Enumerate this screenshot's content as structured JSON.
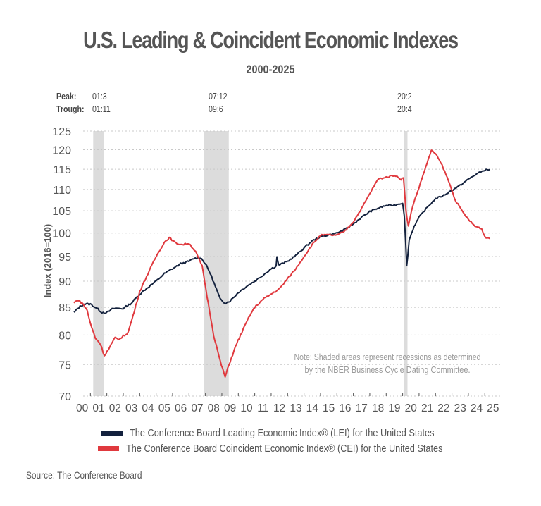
{
  "header": {
    "title": "U.S. Leading & Coincident Economic Indexes",
    "subtitle": "2000-2025"
  },
  "cycle_labels": {
    "peak_label": "Peak:",
    "trough_label": "Trough:",
    "recessions": [
      {
        "peak": "01:3",
        "trough": "01:11"
      },
      {
        "peak": "07:12",
        "trough": "09:6"
      },
      {
        "peak": "20:2",
        "trough": "20:4"
      }
    ]
  },
  "legend": {
    "lei": "The Conference Board Leading Economic Index® (LEI) for the United States",
    "cei": "The Conference Board Coincident Economic Index® (CEI) for the United States"
  },
  "note": {
    "line1": "Note: Shaded areas represent recessions as determined",
    "line2": "by the NBER Business Cycle Dating Committee."
  },
  "source": "Source: The Conference Board",
  "colors": {
    "lei": "#13213d",
    "cei": "#e0393e",
    "recession": "#dcdcdc",
    "grid": "#c8c8c8",
    "text": "#555555"
  },
  "chart_data": {
    "type": "line",
    "title": "U.S. Leading & Coincident Economic Indexes",
    "subtitle": "2000-2025",
    "xlabel": "",
    "ylabel": "Index (2016=100)",
    "yscale": "log",
    "ylim": [
      70,
      125
    ],
    "yticks": [
      70,
      75,
      80,
      85,
      90,
      95,
      100,
      105,
      110,
      115,
      120,
      125
    ],
    "xlim": [
      2000.0,
      2025.5
    ],
    "xtick_labels": [
      "00",
      "01",
      "02",
      "03",
      "04",
      "05",
      "06",
      "07",
      "08",
      "09",
      "10",
      "11",
      "12",
      "13",
      "14",
      "15",
      "16",
      "17",
      "18",
      "19",
      "20",
      "21",
      "22",
      "23",
      "24",
      "25"
    ],
    "grid": true,
    "legend_position": "bottom",
    "recessions": [
      {
        "start": 2001.17,
        "end": 2001.83
      },
      {
        "start": 2007.92,
        "end": 2009.42
      },
      {
        "start": 2020.08,
        "end": 2020.25
      }
    ],
    "series": [
      {
        "name": "LEI",
        "anchors": [
          [
            2000.0,
            84.0
          ],
          [
            2000.3,
            85.0
          ],
          [
            2000.6,
            85.6
          ],
          [
            2001.0,
            85.6
          ],
          [
            2001.3,
            85.0
          ],
          [
            2001.7,
            84.1
          ],
          [
            2002.0,
            84.0
          ],
          [
            2002.4,
            84.8
          ],
          [
            2003.0,
            84.8
          ],
          [
            2003.5,
            85.8
          ],
          [
            2004.0,
            87.5
          ],
          [
            2004.5,
            88.8
          ],
          [
            2005.0,
            90.0
          ],
          [
            2005.5,
            91.5
          ],
          [
            2006.0,
            92.5
          ],
          [
            2006.5,
            93.5
          ],
          [
            2007.0,
            94.0
          ],
          [
            2007.3,
            94.6
          ],
          [
            2007.7,
            94.8
          ],
          [
            2008.0,
            93.5
          ],
          [
            2008.3,
            91.5
          ],
          [
            2008.6,
            89.0
          ],
          [
            2008.9,
            86.5
          ],
          [
            2009.2,
            85.8
          ],
          [
            2009.5,
            86.2
          ],
          [
            2010.0,
            87.8
          ],
          [
            2010.5,
            89.0
          ],
          [
            2011.0,
            90.0
          ],
          [
            2011.5,
            91.2
          ],
          [
            2012.0,
            92.5
          ],
          [
            2012.3,
            93.0
          ],
          [
            2012.35,
            95.0
          ],
          [
            2012.45,
            93.2
          ],
          [
            2013.0,
            94.0
          ],
          [
            2013.5,
            95.2
          ],
          [
            2014.0,
            96.8
          ],
          [
            2014.5,
            98.3
          ],
          [
            2015.0,
            99.2
          ],
          [
            2015.5,
            99.6
          ],
          [
            2016.0,
            100.0
          ],
          [
            2016.5,
            100.8
          ],
          [
            2017.0,
            102.0
          ],
          [
            2017.5,
            103.5
          ],
          [
            2018.0,
            104.8
          ],
          [
            2018.5,
            105.6
          ],
          [
            2019.0,
            106.2
          ],
          [
            2019.5,
            106.3
          ],
          [
            2020.0,
            106.8
          ],
          [
            2020.1,
            104.0
          ],
          [
            2020.25,
            93.0
          ],
          [
            2020.4,
            98.5
          ],
          [
            2020.7,
            101.5
          ],
          [
            2021.0,
            103.5
          ],
          [
            2021.5,
            105.8
          ],
          [
            2022.0,
            107.8
          ],
          [
            2022.5,
            108.6
          ],
          [
            2023.0,
            109.8
          ],
          [
            2023.5,
            111.0
          ],
          [
            2024.0,
            112.5
          ],
          [
            2024.5,
            113.8
          ],
          [
            2025.0,
            114.8
          ],
          [
            2025.3,
            114.9
          ]
        ]
      },
      {
        "name": "CEI",
        "anchors": [
          [
            2000.0,
            85.8
          ],
          [
            2000.2,
            86.4
          ],
          [
            2000.5,
            85.8
          ],
          [
            2000.8,
            84.5
          ],
          [
            2001.0,
            82.0
          ],
          [
            2001.3,
            79.5
          ],
          [
            2001.6,
            78.5
          ],
          [
            2001.85,
            76.5
          ],
          [
            2002.1,
            77.5
          ],
          [
            2002.5,
            79.5
          ],
          [
            2002.8,
            79.3
          ],
          [
            2003.0,
            79.8
          ],
          [
            2003.3,
            80.5
          ],
          [
            2003.6,
            83.5
          ],
          [
            2004.0,
            88.0
          ],
          [
            2004.5,
            91.5
          ],
          [
            2005.0,
            95.0
          ],
          [
            2005.5,
            98.0
          ],
          [
            2005.8,
            99.0
          ],
          [
            2006.2,
            97.8
          ],
          [
            2006.6,
            97.5
          ],
          [
            2007.0,
            97.8
          ],
          [
            2007.4,
            96.0
          ],
          [
            2007.8,
            93.0
          ],
          [
            2008.1,
            87.0
          ],
          [
            2008.5,
            80.0
          ],
          [
            2008.9,
            75.5
          ],
          [
            2009.2,
            73.0
          ],
          [
            2009.5,
            75.5
          ],
          [
            2009.9,
            78.5
          ],
          [
            2010.3,
            81.0
          ],
          [
            2010.7,
            83.5
          ],
          [
            2011.0,
            85.0
          ],
          [
            2011.5,
            86.5
          ],
          [
            2012.0,
            87.5
          ],
          [
            2012.5,
            88.5
          ],
          [
            2013.0,
            90.5
          ],
          [
            2013.5,
            92.5
          ],
          [
            2014.0,
            95.0
          ],
          [
            2014.5,
            97.5
          ],
          [
            2015.0,
            99.5
          ],
          [
            2015.5,
            99.6
          ],
          [
            2016.0,
            99.5
          ],
          [
            2016.5,
            100.5
          ],
          [
            2017.0,
            102.5
          ],
          [
            2017.5,
            105.5
          ],
          [
            2018.0,
            109.0
          ],
          [
            2018.5,
            112.5
          ],
          [
            2019.0,
            113.0
          ],
          [
            2019.5,
            113.5
          ],
          [
            2019.9,
            112.5
          ],
          [
            2020.05,
            113.0
          ],
          [
            2020.2,
            105.0
          ],
          [
            2020.35,
            101.5
          ],
          [
            2020.6,
            106.0
          ],
          [
            2021.0,
            110.5
          ],
          [
            2021.4,
            115.5
          ],
          [
            2021.75,
            119.8
          ],
          [
            2022.0,
            119.0
          ],
          [
            2022.4,
            116.0
          ],
          [
            2022.8,
            112.0
          ],
          [
            2023.2,
            107.5
          ],
          [
            2023.6,
            105.0
          ],
          [
            2024.0,
            103.0
          ],
          [
            2024.4,
            101.5
          ],
          [
            2024.8,
            101.0
          ],
          [
            2025.0,
            99.2
          ],
          [
            2025.3,
            98.8
          ]
        ]
      }
    ]
  }
}
